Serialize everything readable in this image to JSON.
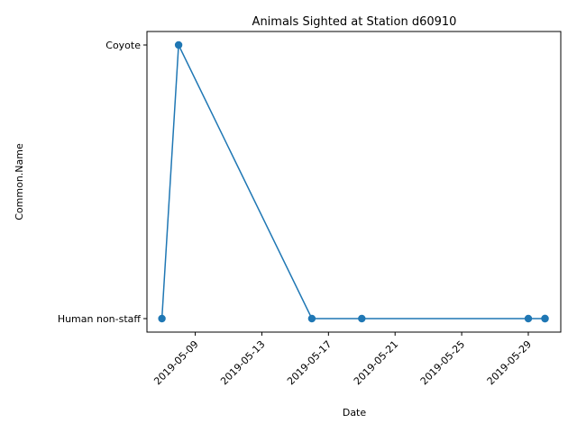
{
  "chart_data": {
    "type": "line",
    "title": "Animals Sighted at Station d60910",
    "xlabel": "Date",
    "ylabel": "Common.Name",
    "x_ticks": [
      "2019-05-09",
      "2019-05-13",
      "2019-05-17",
      "2019-05-21",
      "2019-05-25",
      "2019-05-29"
    ],
    "y_categories": [
      "Human non-staff",
      "Coyote"
    ],
    "xlim": [
      "2019-05-06",
      "2019-05-31"
    ],
    "grid": false,
    "legend": "none",
    "color": "#1f77b4",
    "series": [
      {
        "points": [
          {
            "x": "2019-05-07",
            "y": "Human non-staff"
          },
          {
            "x": "2019-05-08",
            "y": "Coyote"
          },
          {
            "x": "2019-05-16",
            "y": "Human non-staff"
          },
          {
            "x": "2019-05-19",
            "y": "Human non-staff"
          },
          {
            "x": "2019-05-29",
            "y": "Human non-staff"
          },
          {
            "x": "2019-05-30",
            "y": "Human non-staff"
          },
          {
            "x": "2019-05-30",
            "y": "Human non-staff"
          }
        ]
      }
    ]
  }
}
